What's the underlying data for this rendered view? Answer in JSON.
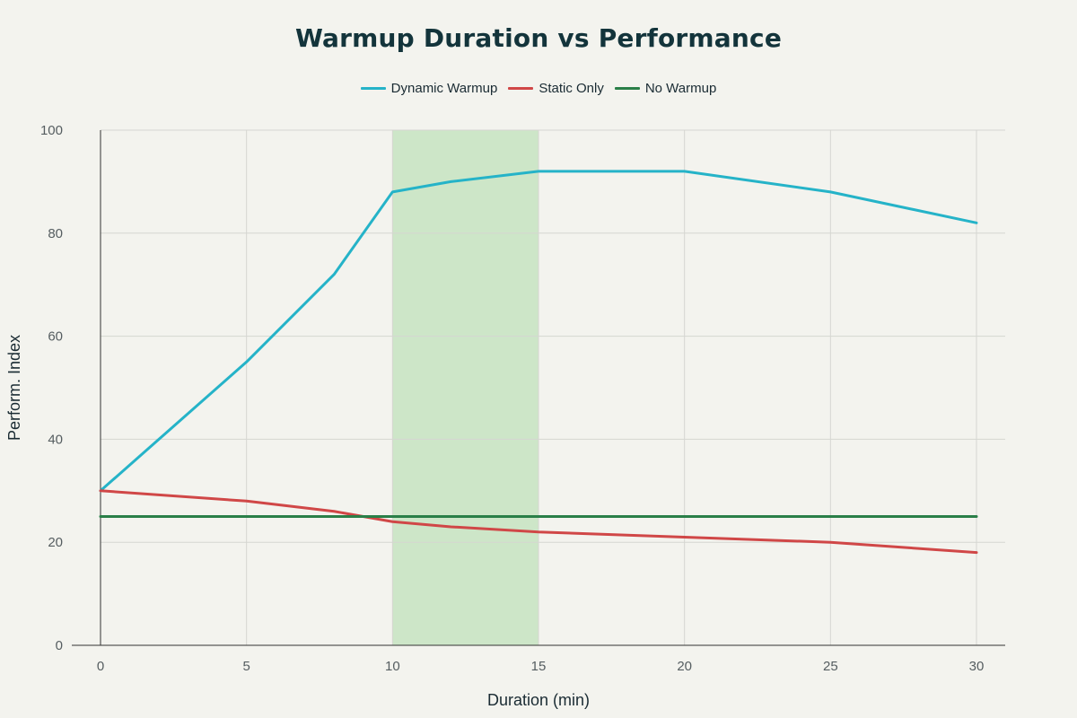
{
  "chart_data": {
    "type": "line",
    "title": "Warmup Duration vs Performance",
    "xlabel": "Duration (min)",
    "ylabel": "Perform. Index",
    "xlim": [
      0,
      30
    ],
    "ylim": [
      0,
      100
    ],
    "x_ticks": [
      0,
      5,
      10,
      15,
      20,
      25,
      30
    ],
    "y_ticks": [
      0,
      20,
      40,
      60,
      80,
      100
    ],
    "grid": true,
    "legend_position": "top-center",
    "highlight_band": {
      "x_range": [
        10,
        15
      ],
      "color": "#b9dfb3"
    },
    "series": [
      {
        "name": "Dynamic Warmup",
        "color": "#25b3c8",
        "x": [
          0,
          5,
          8,
          10,
          12,
          15,
          20,
          25,
          30
        ],
        "y": [
          30,
          55,
          72,
          88,
          90,
          92,
          92,
          88,
          82
        ]
      },
      {
        "name": "Static Only",
        "color": "#d04747",
        "x": [
          0,
          5,
          8,
          10,
          12,
          15,
          20,
          25,
          30
        ],
        "y": [
          30,
          28,
          26,
          24,
          23,
          22,
          21,
          20,
          18
        ]
      },
      {
        "name": "No Warmup",
        "color": "#2a7f48",
        "x": [
          0,
          30
        ],
        "y": [
          25,
          25
        ]
      }
    ]
  }
}
